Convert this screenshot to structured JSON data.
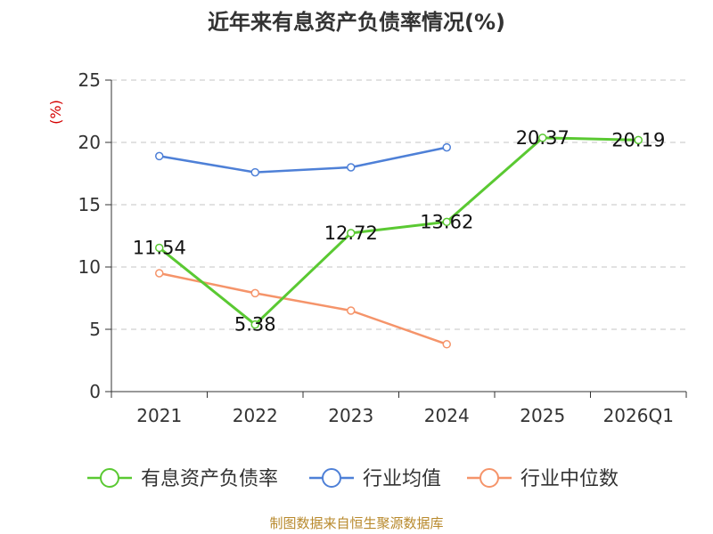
{
  "chart_data": {
    "type": "line",
    "title": "近年来有息资产负债率情况(%)",
    "ylabel": "(%)",
    "ylim": [
      0,
      25
    ],
    "yticks": [
      0,
      5,
      10,
      15,
      20,
      25
    ],
    "grid": "horizontal-dashed",
    "categories": [
      "2021",
      "2022",
      "2023",
      "2024",
      "2025",
      "2026Q1"
    ],
    "series": [
      {
        "name": "有息资产负债率",
        "color": "#5ac932",
        "values": [
          11.54,
          5.38,
          12.72,
          13.62,
          20.37,
          20.19
        ],
        "labels": [
          "11.54",
          "5.38",
          "12.72",
          "13.62",
          "20.37",
          "20.19"
        ]
      },
      {
        "name": "行业均值",
        "color": "#4e80d7",
        "values": [
          18.9,
          17.6,
          18.0,
          19.6,
          null,
          null
        ]
      },
      {
        "name": "行业中位数",
        "color": "#f5946a",
        "values": [
          9.5,
          7.9,
          6.5,
          3.8,
          null,
          null
        ]
      }
    ],
    "legend_position": "bottom",
    "source": "制图数据来自恒生聚源数据库"
  }
}
